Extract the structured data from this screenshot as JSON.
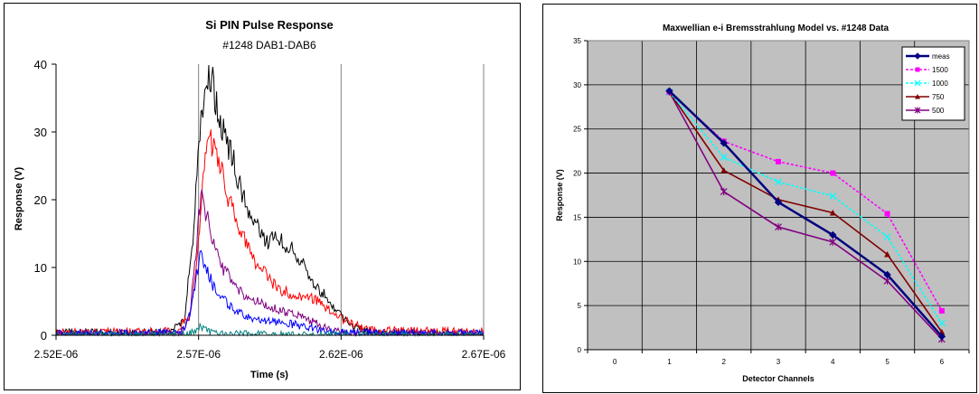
{
  "chart_data": [
    {
      "type": "line",
      "title": "Si PIN Pulse Response",
      "subtitle": "#1248 DAB1-DAB6",
      "xlabel": "Time (s)",
      "ylabel": "Response (V)",
      "xlim": [
        2.52e-06,
        2.67e-06
      ],
      "ylim": [
        0,
        40
      ],
      "x_ticks": [
        2.52e-06,
        2.57e-06,
        2.62e-06,
        2.67e-06
      ],
      "x_tick_labels": [
        "2.52E-06",
        "2.57E-06",
        "2.62E-06",
        "2.67E-06"
      ],
      "y_ticks": [
        0,
        10,
        20,
        30,
        40
      ],
      "y_tick_labels": [
        "0",
        "10",
        "20",
        "30",
        "40"
      ],
      "grid": "vertical",
      "legend": "none",
      "series": [
        {
          "color": "#000000",
          "x": [
            2.52e-06,
            2.56e-06,
            2.565e-06,
            2.568e-06,
            2.5705e-06,
            2.5725e-06,
            2.575e-06,
            2.578e-06,
            2.582e-06,
            2.586e-06,
            2.59e-06,
            2.594e-06,
            2.598e-06,
            2.602e-06,
            2.606e-06,
            2.61e-06,
            2.614e-06,
            2.618e-06,
            2.622e-06,
            2.626e-06,
            2.63e-06,
            2.635e-06,
            2.64e-06,
            2.67e-06
          ],
          "y": [
            0.4,
            0.5,
            2.5,
            14,
            30,
            39,
            37,
            31,
            26,
            20,
            16,
            14,
            14,
            13,
            11,
            8,
            6,
            3.5,
            2,
            1,
            0.6,
            0.3,
            0.2,
            0.1
          ]
        },
        {
          "color": "#ff0000",
          "x": [
            2.52e-06,
            2.562e-06,
            2.567e-06,
            2.57e-06,
            2.572e-06,
            2.574e-06,
            2.576e-06,
            2.58e-06,
            2.585e-06,
            2.59e-06,
            2.595e-06,
            2.6e-06,
            2.605e-06,
            2.61e-06,
            2.615e-06,
            2.62e-06,
            2.625e-06,
            2.63e-06,
            2.67e-06
          ],
          "y": [
            0.5,
            0.6,
            3,
            14,
            25,
            29,
            27,
            21,
            15,
            11,
            8,
            6.5,
            6,
            5.5,
            4,
            2.5,
            1.5,
            0.8,
            0.5
          ]
        },
        {
          "color": "#800080",
          "x": [
            2.52e-06,
            2.564e-06,
            2.567e-06,
            2.569e-06,
            2.5708e-06,
            2.5725e-06,
            2.575e-06,
            2.578e-06,
            2.582e-06,
            2.586e-06,
            2.59e-06,
            2.595e-06,
            2.6e-06,
            2.605e-06,
            2.61e-06,
            2.615e-06,
            2.62e-06,
            2.67e-06
          ],
          "y": [
            0.2,
            0.3,
            3,
            12,
            21,
            18,
            14,
            10,
            8,
            6,
            5,
            4,
            3.5,
            3,
            2,
            1,
            0.4,
            0.2
          ]
        },
        {
          "color": "#0000ff",
          "x": [
            2.52e-06,
            2.564e-06,
            2.567e-06,
            2.569e-06,
            2.5705e-06,
            2.5725e-06,
            2.575e-06,
            2.578e-06,
            2.582e-06,
            2.586e-06,
            2.59e-06,
            2.595e-06,
            2.6e-06,
            2.605e-06,
            2.61e-06,
            2.615e-06,
            2.67e-06
          ],
          "y": [
            0.3,
            0.4,
            3,
            8,
            12,
            10,
            7.5,
            5.5,
            4,
            3,
            2.5,
            2,
            1.8,
            1.5,
            1,
            0.5,
            0.3
          ]
        },
        {
          "color": "#008080",
          "x": [
            2.52e-06,
            2.566e-06,
            2.569e-06,
            2.5705e-06,
            2.572e-06,
            2.574e-06,
            2.578e-06,
            2.585e-06,
            2.6e-06,
            2.67e-06
          ],
          "y": [
            0.05,
            0.1,
            0.6,
            1.2,
            0.8,
            0.5,
            0.3,
            0.2,
            0.1,
            0.05
          ]
        }
      ]
    },
    {
      "type": "line",
      "title": "Maxwellian e-i Bremsstrahlung Model vs. #1248 Data",
      "xlabel": "Detector Channels",
      "ylabel": "Response (V)",
      "xlim": [
        -0.5,
        6.5
      ],
      "ylim": [
        0,
        35
      ],
      "x_ticks": [
        0,
        1,
        2,
        3,
        4,
        5,
        6
      ],
      "y_ticks": [
        0,
        5,
        10,
        15,
        20,
        25,
        30,
        35
      ],
      "grid": "both",
      "legend": "top-right",
      "series": [
        {
          "name": "meas",
          "color": "#000080",
          "marker": "diamond",
          "dash": "solid",
          "x": [
            1,
            2,
            3,
            4,
            5,
            6
          ],
          "y": [
            29.3,
            23.4,
            16.7,
            13.0,
            8.5,
            1.5
          ]
        },
        {
          "name": "1500",
          "color": "#ff00ff",
          "marker": "square",
          "dash": "dashed",
          "x": [
            1,
            2,
            3,
            4,
            5,
            6
          ],
          "y": [
            29.2,
            23.6,
            21.3,
            20.0,
            15.4,
            4.4
          ]
        },
        {
          "name": "1000",
          "color": "#00ffff",
          "marker": "x",
          "dash": "dashed",
          "x": [
            1,
            2,
            3,
            4,
            5,
            6
          ],
          "y": [
            29.2,
            21.8,
            19.0,
            17.4,
            12.8,
            3.0
          ]
        },
        {
          "name": "750",
          "color": "#800000",
          "marker": "triangle",
          "dash": "solid",
          "x": [
            1,
            2,
            3,
            4,
            5,
            6
          ],
          "y": [
            29.2,
            20.3,
            17.0,
            15.5,
            10.8,
            2.0
          ]
        },
        {
          "name": "500",
          "color": "#800080",
          "marker": "star",
          "dash": "solid",
          "x": [
            1,
            2,
            3,
            4,
            5,
            6
          ],
          "y": [
            29.2,
            17.9,
            13.9,
            12.2,
            7.8,
            1.2
          ]
        }
      ]
    }
  ]
}
